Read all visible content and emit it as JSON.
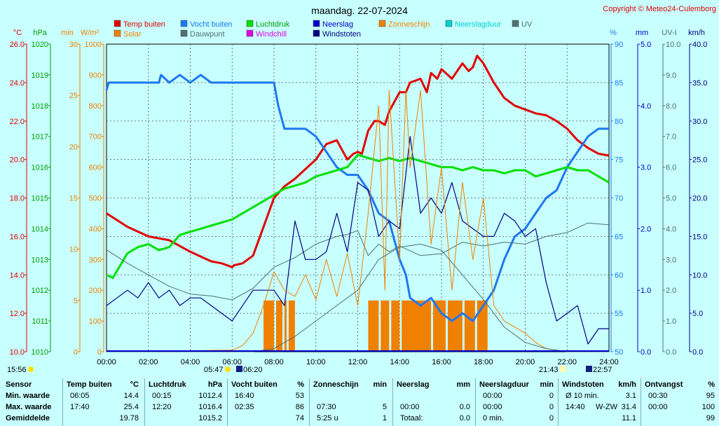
{
  "header": {
    "title": "maandag. 22-07-2024",
    "copyright": "Copyright © Meteo24-Culemborg"
  },
  "chart_data": {
    "type": "line",
    "title": "maandag. 22-07-2024",
    "x_ticks": [
      "00:00",
      "02:00",
      "04:00",
      "06:00",
      "08:00",
      "10:00",
      "12:00",
      "14:00",
      "16:00",
      "18:00",
      "20:00",
      "22:00",
      "24:00"
    ],
    "x_range_hours": [
      0,
      24
    ],
    "legend": [
      {
        "label": "Temp buiten",
        "color": "#e00000"
      },
      {
        "label": "Vocht buiten",
        "color": "#1e78f0"
      },
      {
        "label": "Luchtdruk",
        "color": "#00e000"
      },
      {
        "label": "Neerslag",
        "color": "#0000c8"
      },
      {
        "label": "Zonneschijn",
        "color": "#f08000"
      },
      {
        "label": "Neerslagduur",
        "color": "#00d0d0"
      },
      {
        "label": "UV",
        "color": "#507070"
      },
      {
        "label": "Solar",
        "color": "#f08000"
      },
      {
        "label": "Dauwpunt",
        "color": "#507070"
      },
      {
        "label": "Windchill",
        "color": "#e000e0"
      },
      {
        "label": "Windstoten",
        "color": "#000080"
      }
    ],
    "axes": [
      {
        "unit": "°C",
        "min": 10,
        "max": 26,
        "ticks": [
          "10.0",
          "12.0",
          "14.0",
          "16.0",
          "18.0",
          "20.0",
          "22.0",
          "24.0",
          "26.0"
        ],
        "color": "#e00000"
      },
      {
        "unit": "hPa",
        "min": 1010,
        "max": 1020,
        "ticks": [
          "1010",
          "1011",
          "1012",
          "1013",
          "1014",
          "1015",
          "1016",
          "1017",
          "1018",
          "1019",
          "1020"
        ],
        "color": "#00a000"
      },
      {
        "unit": "min",
        "min": 0,
        "max": 30,
        "ticks": [
          "0",
          "5",
          "10",
          "15",
          "20",
          "25",
          "30"
        ],
        "color": "#f08000"
      },
      {
        "unit": "W/m²",
        "min": 0,
        "max": 1000,
        "ticks": [
          "0",
          "100",
          "200",
          "300",
          "400",
          "500",
          "600",
          "700",
          "800",
          "900",
          "1000"
        ],
        "color": "#f08000"
      },
      {
        "unit": "%",
        "min": 50,
        "max": 90,
        "ticks": [
          "50",
          "55",
          "60",
          "65",
          "70",
          "75",
          "80",
          "85",
          "90"
        ],
        "color": "#1e78f0"
      },
      {
        "unit": "mm",
        "min": 0,
        "max": 5,
        "ticks": [
          "0.0",
          "1.0",
          "2.0",
          "3.0",
          "4.0",
          "5.0"
        ],
        "color": "#0000c8"
      },
      {
        "unit": "UV-I",
        "min": 0,
        "max": 10,
        "ticks": [
          "0.0",
          "1.0",
          "2.0",
          "3.0",
          "4.0",
          "5.0",
          "6.0",
          "7.0",
          "8.0",
          "9.0",
          "10.0"
        ],
        "color": "#507070"
      },
      {
        "unit": "km/h",
        "min": 0,
        "max": 40,
        "ticks": [
          "0.0",
          "5.0",
          "10.0",
          "15.0",
          "20.0",
          "25.0",
          "30.0",
          "35.0",
          "40.0"
        ],
        "color": "#000080"
      }
    ],
    "series": [
      {
        "name": "Temp buiten",
        "unit": "°C",
        "x": [
          0,
          1,
          2,
          3,
          4,
          5,
          5.5,
          6,
          6.1,
          6.5,
          7,
          7.5,
          8,
          8.5,
          9,
          10,
          10.5,
          11,
          11.3,
          11.5,
          11.8,
          12,
          12.2,
          12.5,
          12.8,
          13,
          13.3,
          13.5,
          14,
          14.3,
          14.5,
          15,
          15.3,
          15.5,
          15.8,
          16,
          16.3,
          16.5,
          17,
          17.3,
          17.5,
          17.7,
          18,
          18.5,
          19,
          19.5,
          20,
          20.5,
          21,
          21.5,
          22,
          22.5,
          23,
          23.5,
          24
        ],
        "values": [
          17.2,
          16.5,
          16.0,
          15.8,
          15.2,
          14.7,
          14.6,
          14.4,
          14.5,
          14.6,
          15,
          16.5,
          18.0,
          18.6,
          19.0,
          20.0,
          20.8,
          21.0,
          20.4,
          20.0,
          20.3,
          20.4,
          20.3,
          21.5,
          22.0,
          22.0,
          21.8,
          22.5,
          23.5,
          23.5,
          24.0,
          24.2,
          23.5,
          24.5,
          24.2,
          24.7,
          24.4,
          24.2,
          25.0,
          24.6,
          24.8,
          25.4,
          25.0,
          24.0,
          23.2,
          22.8,
          22.6,
          22.4,
          22.3,
          22.0,
          21.6,
          21.0,
          20.6,
          20.3,
          20.2
        ]
      },
      {
        "name": "Vocht buiten",
        "unit": "%",
        "x": [
          0,
          0.1,
          2.5,
          2.6,
          3,
          3.5,
          4,
          4.5,
          5,
          5.5,
          6,
          7,
          7.5,
          8,
          8.2,
          8.5,
          9,
          9.5,
          10,
          10.5,
          11,
          11.5,
          12,
          12.5,
          13,
          13.5,
          14,
          14.3,
          14.5,
          15,
          15.5,
          16,
          16.5,
          17,
          17.5,
          18,
          18.5,
          19,
          19.5,
          20,
          20.5,
          21,
          21.5,
          22,
          22.5,
          23,
          23.5,
          24
        ],
        "values": [
          84,
          85,
          85,
          86,
          85,
          86,
          85,
          86,
          85,
          85,
          85,
          85,
          85,
          85,
          82,
          79,
          79,
          79,
          78,
          76,
          74,
          73,
          73,
          71,
          68,
          67,
          62,
          60,
          57,
          56,
          57,
          55,
          54,
          55,
          54,
          56,
          58,
          62,
          65,
          66,
          68,
          70,
          71,
          74,
          76,
          78,
          79,
          79
        ]
      },
      {
        "name": "Luchtdruk",
        "unit": "hPa",
        "x": [
          0,
          0.3,
          1,
          1.5,
          2,
          2.5,
          3,
          3.5,
          4,
          4.5,
          5,
          5.5,
          6,
          6.5,
          7,
          7.5,
          8,
          8.5,
          9,
          9.5,
          10,
          10.5,
          11,
          11.5,
          12,
          12.5,
          13,
          13.5,
          14,
          14.5,
          15,
          15.5,
          16,
          16.5,
          17,
          17.5,
          18,
          18.5,
          19,
          19.5,
          20,
          20.5,
          21,
          21.5,
          22,
          22.5,
          23,
          23.5,
          24
        ],
        "values": [
          1012.5,
          1012.4,
          1013.2,
          1013.4,
          1013.5,
          1013.3,
          1013.4,
          1013.8,
          1013.9,
          1014.0,
          1014.1,
          1014.2,
          1014.3,
          1014.5,
          1014.7,
          1014.9,
          1015.1,
          1015.3,
          1015.4,
          1015.5,
          1015.7,
          1015.8,
          1015.9,
          1016.0,
          1016.4,
          1016.3,
          1016.2,
          1016.3,
          1016.2,
          1016.3,
          1016.2,
          1016.1,
          1016.0,
          1016.0,
          1015.9,
          1016.0,
          1015.9,
          1015.9,
          1015.8,
          1015.9,
          1015.9,
          1015.7,
          1015.8,
          1015.9,
          1016.0,
          1015.9,
          1015.9,
          1015.7,
          1015.5
        ]
      },
      {
        "name": "Dauwpunt",
        "unit": "°C",
        "x": [
          0,
          1,
          2,
          3,
          4,
          5,
          6,
          7,
          8,
          9,
          10,
          11,
          11.5,
          12,
          12.5,
          13,
          13.5,
          14,
          15,
          16,
          17,
          18,
          19,
          20,
          21,
          22,
          23,
          24
        ],
        "values": [
          15.3,
          14.6,
          14.0,
          13.4,
          13.0,
          12.9,
          12.7,
          13.3,
          14.4,
          14.9,
          15.6,
          16.0,
          16.1,
          16.3,
          15.0,
          15.6,
          15.2,
          15.5,
          15.0,
          15.1,
          15.7,
          15.5,
          15.7,
          15.6,
          16.0,
          16.2,
          16.7,
          16.6
        ]
      },
      {
        "name": "Windstoten",
        "unit": "km/h",
        "x": [
          0,
          0.5,
          1,
          1.5,
          2,
          2.5,
          3,
          3.5,
          4,
          4.5,
          5,
          5.5,
          6,
          6.5,
          7,
          7.5,
          8,
          8.5,
          9,
          9.5,
          10,
          10.5,
          11,
          11.5,
          12,
          12.5,
          13,
          13.5,
          14,
          14.5,
          15,
          15.5,
          16,
          16.5,
          17,
          17.5,
          18,
          18.5,
          19,
          19.5,
          20,
          20.5,
          21,
          21.5,
          22,
          22.5,
          23,
          23.5,
          24
        ],
        "values": [
          6,
          7,
          8,
          7,
          9,
          7,
          8,
          6,
          7,
          7,
          6,
          5,
          4,
          6,
          8,
          8,
          8,
          6,
          17,
          12,
          12,
          13,
          18,
          13,
          22,
          21,
          15,
          17,
          16,
          28,
          18,
          20,
          18,
          22,
          17,
          16,
          15,
          15,
          18,
          17,
          15,
          16,
          9,
          4,
          5,
          6,
          1,
          3,
          3
        ]
      },
      {
        "name": "Solar",
        "unit": "W/m²",
        "x": [
          0,
          6,
          6.5,
          7,
          7.5,
          8,
          8.5,
          9,
          9.5,
          10,
          10.5,
          11,
          11.5,
          12,
          12.5,
          13,
          13.3,
          13.5,
          14,
          14.3,
          14.5,
          15,
          15.5,
          16,
          16.5,
          17,
          17.5,
          18,
          18.5,
          19,
          19.5,
          20,
          20.5,
          21,
          21.5,
          22,
          24
        ],
        "values": [
          0,
          5,
          20,
          60,
          150,
          260,
          200,
          180,
          250,
          170,
          300,
          180,
          320,
          150,
          450,
          800,
          200,
          850,
          300,
          850,
          600,
          850,
          350,
          600,
          200,
          550,
          300,
          500,
          150,
          100,
          80,
          60,
          30,
          10,
          5,
          0,
          0
        ]
      },
      {
        "name": "UV",
        "unit": "UV-I",
        "x": [
          0,
          6,
          7,
          8,
          9,
          10,
          11,
          12,
          13,
          14,
          15,
          16,
          17,
          18,
          19,
          20,
          21,
          22,
          24
        ],
        "values": [
          0,
          0,
          0,
          0.1,
          0.5,
          1.0,
          1.5,
          2.0,
          3.0,
          3.4,
          3.5,
          3.3,
          2.5,
          1.7,
          0.8,
          0.3,
          0.1,
          0,
          0
        ]
      }
    ],
    "sun_hours": {
      "sunrise": "05:47",
      "sunset": "21:43",
      "moonrise": "22:57",
      "other": "06:20",
      "left_time": "15:56"
    }
  },
  "stats": {
    "columns": [
      {
        "title": "Sensor",
        "unit": "",
        "rows": [
          "Min. waarde",
          "Max. waarde",
          "Gemiddelde"
        ]
      },
      {
        "title": "Temp buiten",
        "unit": "°C",
        "times": [
          "06:05",
          "17:40",
          ""
        ],
        "values": [
          "14.4",
          "25.4",
          "19.78"
        ]
      },
      {
        "title": "Luchtdruk",
        "unit": "hPa",
        "times": [
          "00:15",
          "12:20",
          ""
        ],
        "values": [
          "1012.4",
          "1016.4",
          "1015.2"
        ]
      },
      {
        "title": "Vocht buiten",
        "unit": "%",
        "times": [
          "16:40",
          "02:35",
          ""
        ],
        "values": [
          "53",
          "86",
          "74"
        ]
      },
      {
        "title": "Zonneschijn",
        "unit": "min",
        "times": [
          "",
          "07:30",
          "5:25 u"
        ],
        "values": [
          "",
          "5",
          "1"
        ]
      },
      {
        "title": "Neerslag",
        "unit": "mm",
        "times": [
          "",
          "00:00",
          "Totaal:"
        ],
        "values": [
          "",
          "0.0",
          "0.0"
        ]
      },
      {
        "title": "Neerslagduur",
        "unit": "min",
        "times": [
          "00:00",
          "00:00",
          "0 min."
        ],
        "values": [
          "0",
          "0",
          "0"
        ]
      },
      {
        "title": "Windstoten",
        "unit": "km/h",
        "times": [
          "Ø 10 min.",
          "14:40",
          ""
        ],
        "extra": [
          "",
          "W-ZW",
          ""
        ],
        "values": [
          "3.1",
          "31.4",
          "11.1"
        ]
      },
      {
        "title": "Ontvangst",
        "unit": "%",
        "times": [
          "00:30",
          "00:00",
          ""
        ],
        "values": [
          "95",
          "100",
          "99"
        ]
      }
    ]
  }
}
